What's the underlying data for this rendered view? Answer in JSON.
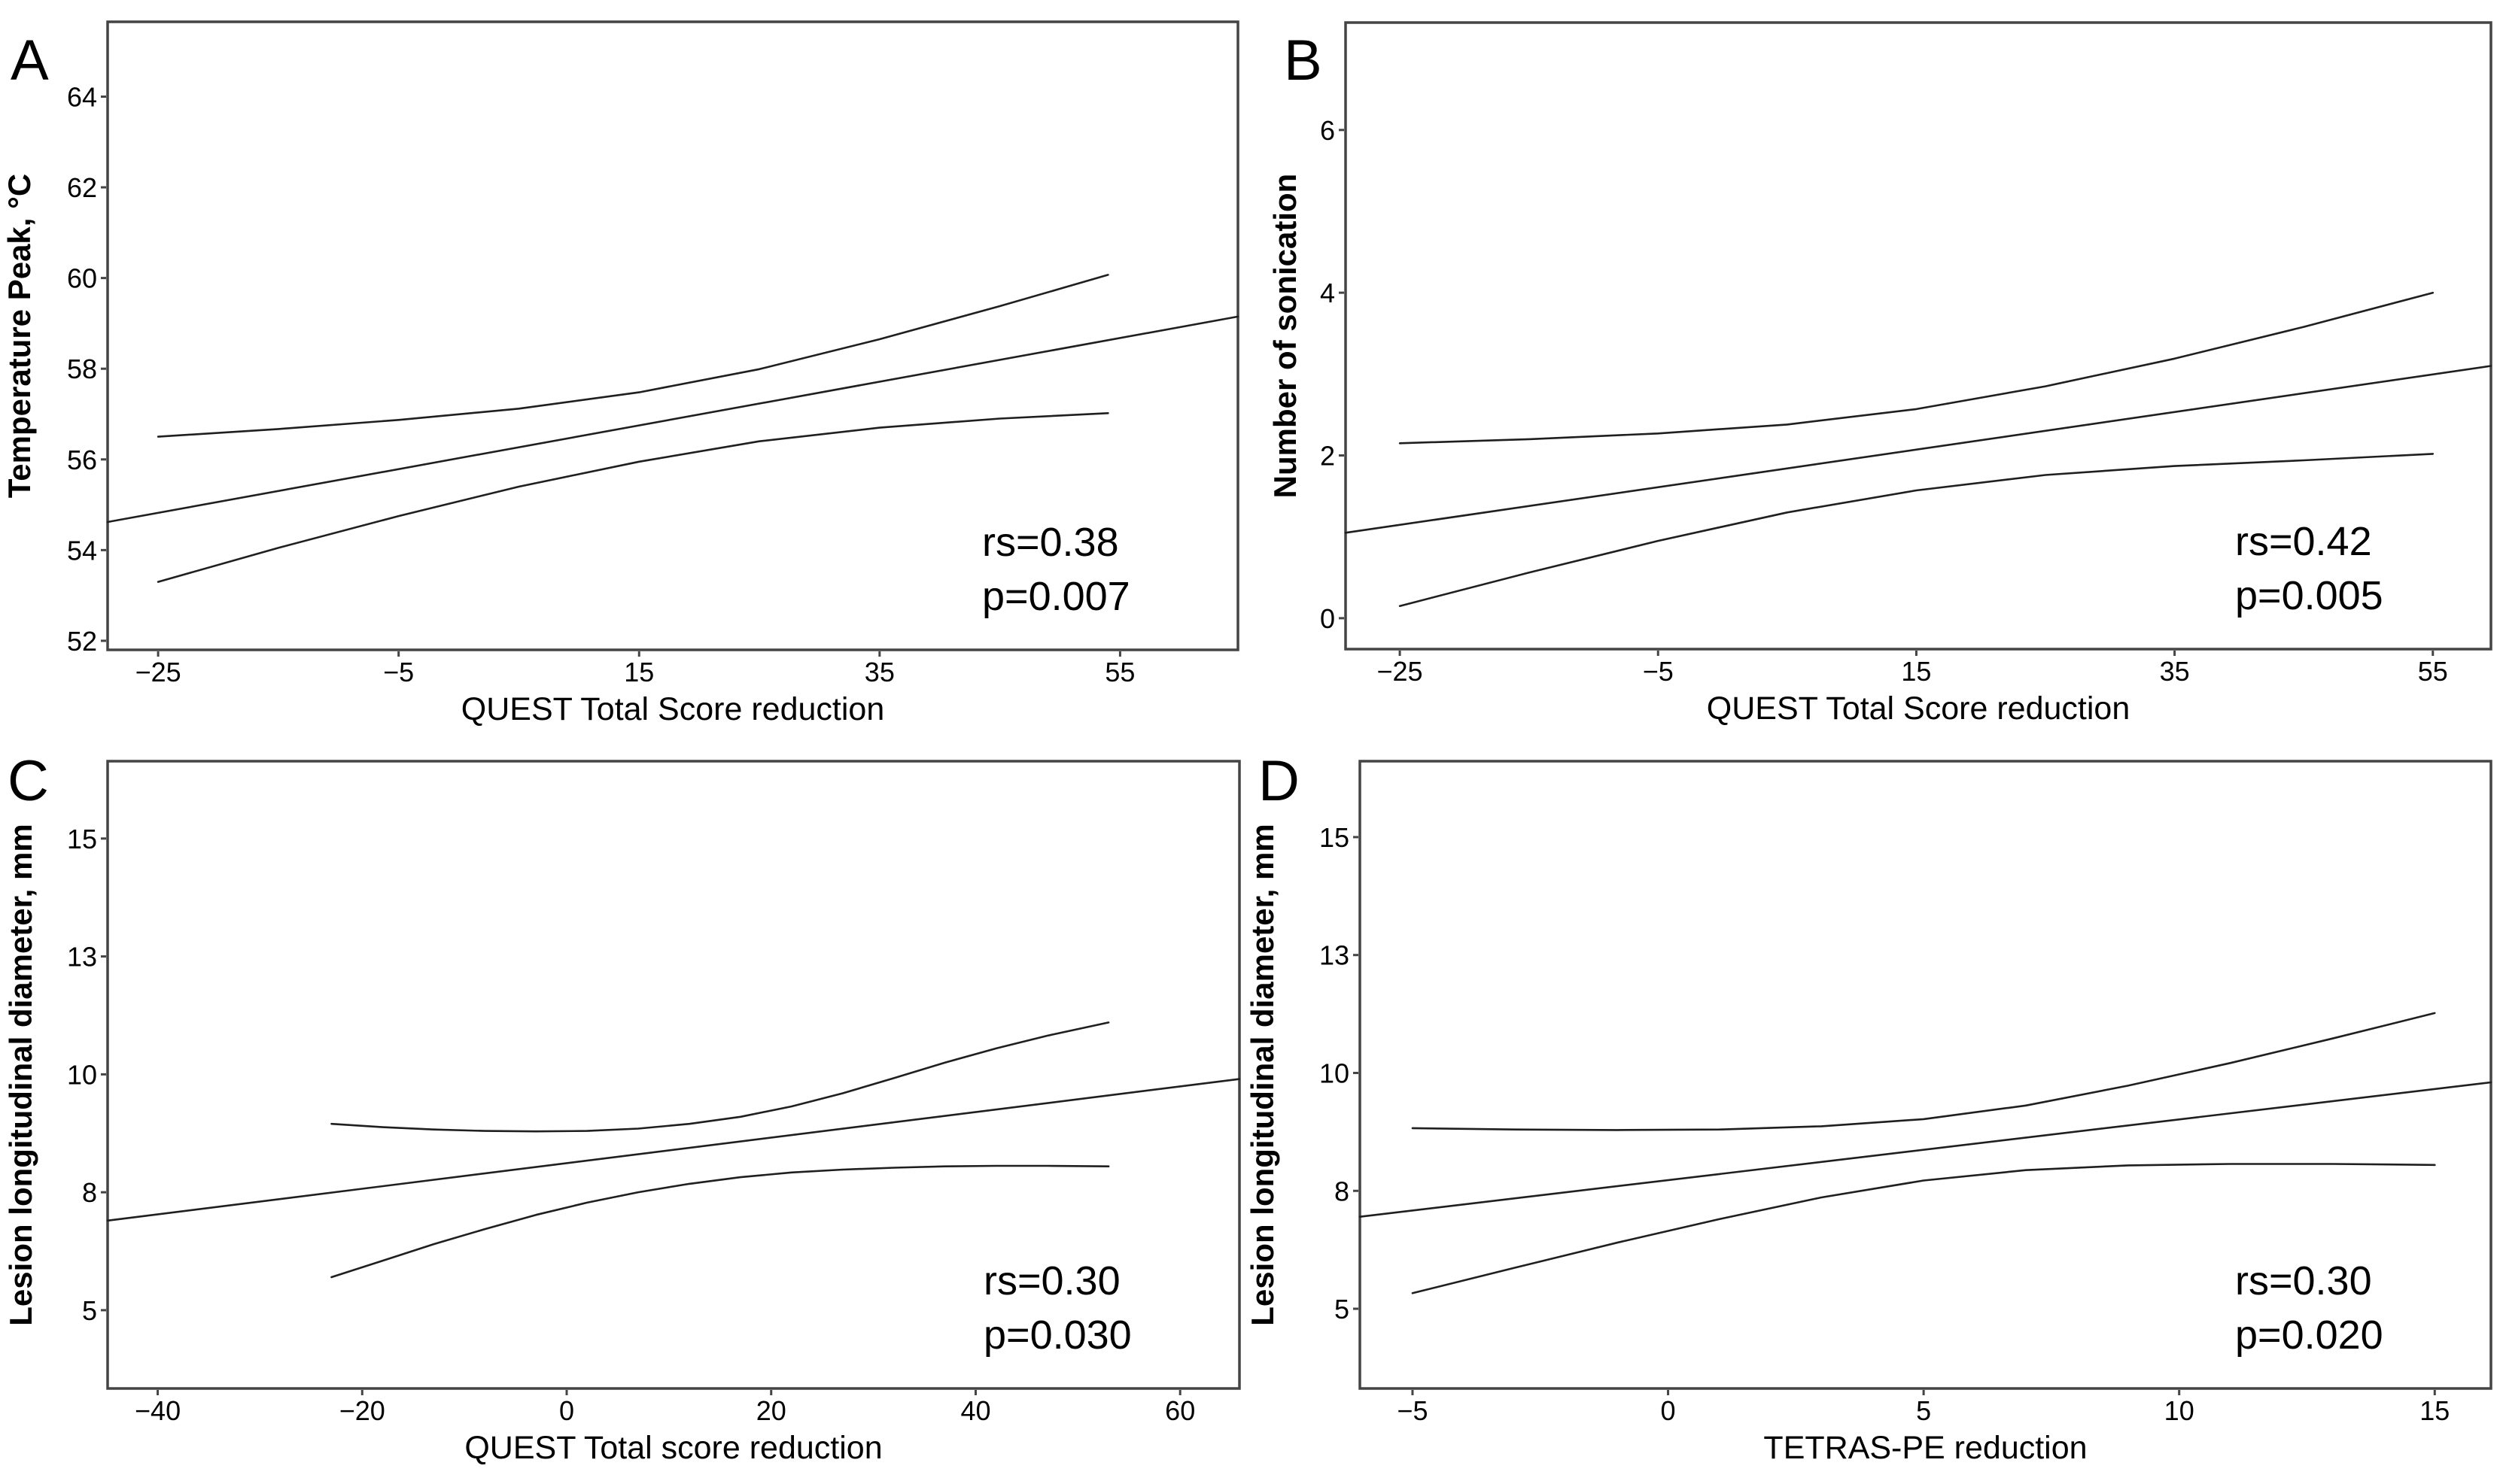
{
  "figure": {
    "background": "#ffffff",
    "axis_color": "#444444",
    "curve_color": "#1f1f1f",
    "text_color": "#000000",
    "chart_data": [
      {
        "id": "A",
        "panel_label": "A",
        "type": "line",
        "xlabel": "QUEST Total Score reduction",
        "ylabel": "Temperature Peak, °C",
        "annotation": [
          "rs=0.38",
          "p=0.007"
        ],
        "xlim": [
          -29.2,
          64.8
        ],
        "ylim": [
          51.8,
          65.65
        ],
        "grid": "off",
        "x_ticks": {
          "values": [
            -25,
            -5,
            15,
            35,
            55
          ],
          "labels": [
            "−25",
            "−5",
            "15",
            "35",
            "55"
          ]
        },
        "y_ticks": {
          "values": [
            52,
            54,
            56,
            58,
            60,
            62,
            64
          ],
          "labels": [
            "52",
            "54",
            "56",
            "58",
            "60",
            "62",
            "64"
          ]
        },
        "series": [
          {
            "name": "fit",
            "points": [
              [
                -29.2,
                54.62
              ],
              [
                64.8,
                59.15
              ]
            ]
          },
          {
            "name": "ci_upper",
            "points": [
              [
                -25,
                56.5
              ],
              [
                -15,
                56.67
              ],
              [
                -5,
                56.87
              ],
              [
                5,
                57.12
              ],
              [
                15,
                57.48
              ],
              [
                25,
                57.99
              ],
              [
                35,
                58.65
              ],
              [
                45,
                59.38
              ],
              [
                54,
                60.07
              ]
            ]
          },
          {
            "name": "ci_lower",
            "points": [
              [
                -25,
                53.3
              ],
              [
                -15,
                54.05
              ],
              [
                -5,
                54.75
              ],
              [
                5,
                55.4
              ],
              [
                15,
                55.95
              ],
              [
                25,
                56.4
              ],
              [
                35,
                56.7
              ],
              [
                45,
                56.9
              ],
              [
                54,
                57.02
              ]
            ]
          }
        ]
      },
      {
        "id": "B",
        "panel_label": "B",
        "type": "line",
        "xlabel": "QUEST Total Score reduction",
        "ylabel": "Number of sonication",
        "annotation": [
          "rs=0.42",
          "p=0.005"
        ],
        "xlim": [
          -29.2,
          59.5
        ],
        "ylim": [
          -0.38,
          7.32
        ],
        "grid": "off",
        "x_ticks": {
          "values": [
            -25,
            -5,
            15,
            35,
            55
          ],
          "labels": [
            "−25",
            "−5",
            "15",
            "35",
            "55"
          ]
        },
        "y_ticks": {
          "values": [
            0,
            2,
            4,
            6
          ],
          "labels": [
            "0",
            "2",
            "4",
            "6"
          ]
        },
        "series": [
          {
            "name": "fit",
            "points": [
              [
                -29.2,
                1.05
              ],
              [
                59.5,
                3.1
              ]
            ]
          },
          {
            "name": "ci_upper",
            "points": [
              [
                -25,
                2.15
              ],
              [
                -15,
                2.2
              ],
              [
                -5,
                2.27
              ],
              [
                5,
                2.38
              ],
              [
                15,
                2.57
              ],
              [
                25,
                2.85
              ],
              [
                35,
                3.19
              ],
              [
                45,
                3.58
              ],
              [
                55,
                4.0
              ]
            ]
          },
          {
            "name": "ci_lower",
            "points": [
              [
                -25,
                0.15
              ],
              [
                -15,
                0.56
              ],
              [
                -5,
                0.95
              ],
              [
                5,
                1.3
              ],
              [
                15,
                1.57
              ],
              [
                25,
                1.76
              ],
              [
                35,
                1.87
              ],
              [
                45,
                1.94
              ],
              [
                55,
                2.02
              ]
            ]
          }
        ]
      },
      {
        "id": "C",
        "panel_label": "C",
        "type": "line",
        "xlabel": "QUEST Total score reduction",
        "ylabel": "Lesion longitudinal diameter, mm",
        "annotation": [
          "rs=0.30",
          "p=0.030"
        ],
        "xlim": [
          -44.9,
          65.8
        ],
        "ylim": [
          3.34,
          16.64
        ],
        "grid": "off",
        "x_ticks": {
          "values": [
            -40,
            -20,
            0,
            20,
            40,
            60
          ],
          "labels": [
            "−40",
            "−20",
            "0",
            "20",
            "40",
            "60"
          ]
        },
        "y_ticks": {
          "values": [
            5,
            7.5,
            10,
            12.5,
            15
          ],
          "labels": [
            "5",
            "8",
            "10",
            "13",
            "15"
          ]
        },
        "series": [
          {
            "name": "fit",
            "points": [
              [
                -44.9,
                6.9
              ],
              [
                65.8,
                9.9
              ]
            ]
          },
          {
            "name": "ci_upper",
            "points": [
              [
                -23,
                8.95
              ],
              [
                -18,
                8.88
              ],
              [
                -13,
                8.83
              ],
              [
                -8,
                8.8
              ],
              [
                -3,
                8.79
              ],
              [
                2,
                8.8
              ],
              [
                7,
                8.85
              ],
              [
                12,
                8.95
              ],
              [
                17,
                9.1
              ],
              [
                22,
                9.32
              ],
              [
                27,
                9.6
              ],
              [
                32,
                9.92
              ],
              [
                37,
                10.25
              ],
              [
                42,
                10.55
              ],
              [
                47,
                10.82
              ],
              [
                53,
                11.1
              ]
            ]
          },
          {
            "name": "ci_lower",
            "points": [
              [
                -23,
                5.7
              ],
              [
                -18,
                6.05
              ],
              [
                -13,
                6.4
              ],
              [
                -8,
                6.72
              ],
              [
                -3,
                7.02
              ],
              [
                2,
                7.28
              ],
              [
                7,
                7.5
              ],
              [
                12,
                7.68
              ],
              [
                17,
                7.82
              ],
              [
                22,
                7.92
              ],
              [
                27,
                7.98
              ],
              [
                32,
                8.02
              ],
              [
                37,
                8.05
              ],
              [
                42,
                8.06
              ],
              [
                47,
                8.06
              ],
              [
                53,
                8.05
              ]
            ]
          }
        ]
      },
      {
        "id": "D",
        "panel_label": "D",
        "type": "line",
        "xlabel": "TETRAS-PE reduction",
        "ylabel": "Lesion longitudinal diameter, mm",
        "annotation": [
          "rs=0.30",
          "p=0.020"
        ],
        "xlim": [
          -6.03,
          16.1
        ],
        "ylim": [
          3.31,
          16.61
        ],
        "grid": "off",
        "x_ticks": {
          "values": [
            -5,
            0,
            5,
            10,
            15
          ],
          "labels": [
            "−5",
            "0",
            "5",
            "10",
            "15"
          ]
        },
        "y_ticks": {
          "values": [
            5,
            7.5,
            10,
            12.5,
            15
          ],
          "labels": [
            "5",
            "8",
            "10",
            "13",
            "15"
          ]
        },
        "series": [
          {
            "name": "fit",
            "points": [
              [
                -6.03,
                6.95
              ],
              [
                16.1,
                9.8
              ]
            ]
          },
          {
            "name": "ci_upper",
            "points": [
              [
                -5,
                8.83
              ],
              [
                -3,
                8.8
              ],
              [
                -1,
                8.79
              ],
              [
                1,
                8.8
              ],
              [
                3,
                8.87
              ],
              [
                5,
                9.02
              ],
              [
                7,
                9.31
              ],
              [
                9,
                9.73
              ],
              [
                11,
                10.21
              ],
              [
                13,
                10.73
              ],
              [
                15,
                11.27
              ]
            ]
          },
          {
            "name": "ci_lower",
            "points": [
              [
                -5,
                5.33
              ],
              [
                -3,
                5.87
              ],
              [
                -1,
                6.4
              ],
              [
                1,
                6.9
              ],
              [
                3,
                7.36
              ],
              [
                5,
                7.72
              ],
              [
                7,
                7.94
              ],
              [
                9,
                8.04
              ],
              [
                11,
                8.07
              ],
              [
                13,
                8.07
              ],
              [
                15,
                8.05
              ]
            ]
          }
        ]
      }
    ]
  }
}
